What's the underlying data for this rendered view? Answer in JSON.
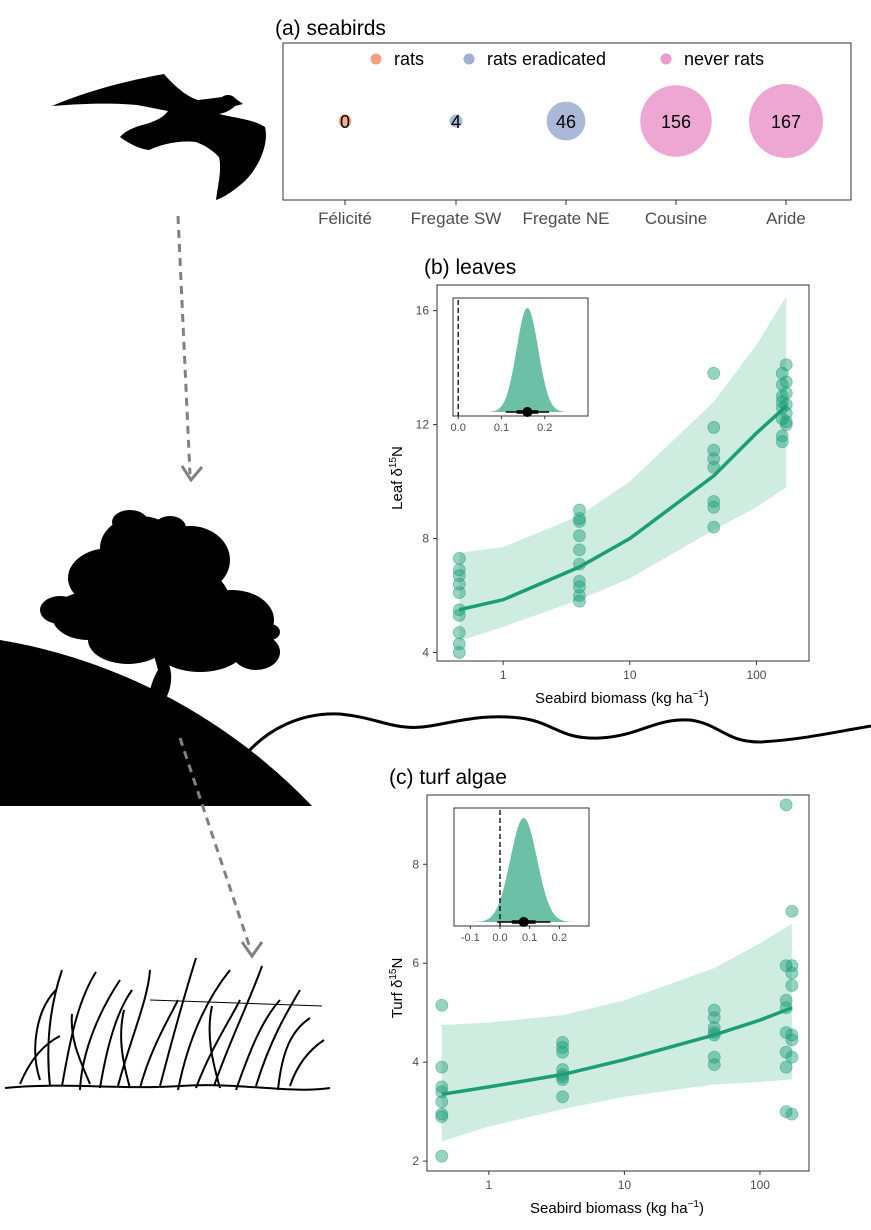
{
  "colors": {
    "rats": "#f0916a",
    "rats_eradicated": "#8fa0cb",
    "never_rats": "#e78ac3",
    "green": "#1b9e77",
    "ribbon": "#a8dcc8"
  },
  "icons": [
    "seabird-silhouette",
    "tree-silhouette",
    "island-hill",
    "sea-surface-line",
    "turf-algae-drawing",
    "dashed-arrow"
  ],
  "chart_data": [
    {
      "id": "a",
      "type": "bubble",
      "title": "(a) seabirds",
      "categories": [
        "Félicité",
        "Fregate SW",
        "Fregate NE",
        "Cousine",
        "Aride"
      ],
      "values": [
        0,
        4,
        46,
        156,
        167
      ],
      "status": [
        "rats",
        "rats eradicated",
        "rats eradicated",
        "never rats",
        "never rats"
      ],
      "legend": [
        "rats",
        "rats eradicated",
        "never rats"
      ],
      "legend_position": "top"
    },
    {
      "id": "b",
      "type": "scatter",
      "title": "(b) leaves",
      "xlabel_main": "Seabird biomass (kg ha",
      "xlabel_sup": "−1",
      "xlabel_end": ")",
      "ylabel_main": "Leaf δ",
      "ylabel_sup": "15",
      "ylabel_end": "N",
      "x_scale": "log",
      "xlim": [
        0.3,
        260
      ],
      "ylim": [
        3.7,
        16.9
      ],
      "xticks": [
        1,
        10,
        100
      ],
      "xtick_labels": [
        "1",
        "10",
        "100"
      ],
      "yticks": [
        4,
        8,
        12,
        16
      ],
      "ytick_labels": [
        "4",
        "8",
        "12",
        "16"
      ],
      "points": [
        {
          "x": 0.45,
          "y": 7.3
        },
        {
          "x": 0.45,
          "y": 6.9
        },
        {
          "x": 0.45,
          "y": 6.7
        },
        {
          "x": 0.45,
          "y": 6.4
        },
        {
          "x": 0.45,
          "y": 6.1
        },
        {
          "x": 0.45,
          "y": 5.5
        },
        {
          "x": 0.45,
          "y": 5.3
        },
        {
          "x": 0.45,
          "y": 4.7
        },
        {
          "x": 0.45,
          "y": 4.3
        },
        {
          "x": 0.45,
          "y": 4.0
        },
        {
          "x": 4,
          "y": 9.0
        },
        {
          "x": 4,
          "y": 8.7
        },
        {
          "x": 4,
          "y": 8.6
        },
        {
          "x": 4,
          "y": 8.1
        },
        {
          "x": 4,
          "y": 7.6
        },
        {
          "x": 4,
          "y": 7.1
        },
        {
          "x": 4,
          "y": 6.5
        },
        {
          "x": 4,
          "y": 6.3
        },
        {
          "x": 4,
          "y": 6.0
        },
        {
          "x": 4,
          "y": 5.8
        },
        {
          "x": 46,
          "y": 13.8
        },
        {
          "x": 46,
          "y": 11.9
        },
        {
          "x": 46,
          "y": 11.1
        },
        {
          "x": 46,
          "y": 10.8
        },
        {
          "x": 46,
          "y": 10.5
        },
        {
          "x": 46,
          "y": 9.3
        },
        {
          "x": 46,
          "y": 9.1
        },
        {
          "x": 46,
          "y": 8.4
        },
        {
          "x": 160,
          "y": 13.8
        },
        {
          "x": 160,
          "y": 13.4
        },
        {
          "x": 160,
          "y": 13.0
        },
        {
          "x": 160,
          "y": 12.8
        },
        {
          "x": 160,
          "y": 12.6
        },
        {
          "x": 160,
          "y": 12.2
        },
        {
          "x": 160,
          "y": 11.6
        },
        {
          "x": 160,
          "y": 11.4
        },
        {
          "x": 172,
          "y": 14.1
        },
        {
          "x": 172,
          "y": 13.5
        },
        {
          "x": 172,
          "y": 13.1
        },
        {
          "x": 172,
          "y": 12.7
        },
        {
          "x": 172,
          "y": 12.4
        },
        {
          "x": 172,
          "y": 12.1
        },
        {
          "x": 172,
          "y": 12.0
        }
      ],
      "fit": [
        {
          "x": 0.45,
          "y": 5.5,
          "lo": 4.4,
          "hi": 7.5
        },
        {
          "x": 1,
          "y": 5.85,
          "lo": 4.9,
          "hi": 7.7
        },
        {
          "x": 4,
          "y": 7.0,
          "lo": 5.85,
          "hi": 8.8
        },
        {
          "x": 10,
          "y": 8.0,
          "lo": 6.6,
          "hi": 10.0
        },
        {
          "x": 46,
          "y": 10.2,
          "lo": 8.3,
          "hi": 12.8
        },
        {
          "x": 100,
          "y": 11.7,
          "lo": 9.1,
          "hi": 14.8
        },
        {
          "x": 172,
          "y": 12.65,
          "lo": 9.8,
          "hi": 16.5
        }
      ],
      "inset": {
        "type": "density",
        "xlim": [
          -0.012,
          0.3
        ],
        "xticks": [
          0.0,
          0.1,
          0.2
        ],
        "xtick_labels": [
          "0.0",
          "0.1",
          "0.2"
        ],
        "zero_line": 0,
        "mean": 0.16,
        "sd": 0.025,
        "median": 0.16,
        "inner_interval": [
          0.135,
          0.185
        ],
        "outer_interval": [
          0.11,
          0.21
        ]
      }
    },
    {
      "id": "c",
      "type": "scatter",
      "title": "(c) turf algae",
      "xlabel_main": "Seabird biomass (kg ha",
      "xlabel_sup": "−1",
      "xlabel_end": ")",
      "ylabel_main": "Turf δ",
      "ylabel_sup": "15",
      "ylabel_end": "N",
      "x_scale": "log",
      "xlim": [
        0.35,
        230
      ],
      "ylim": [
        1.8,
        9.4
      ],
      "xticks": [
        1,
        10,
        100
      ],
      "xtick_labels": [
        "1",
        "10",
        "100"
      ],
      "yticks": [
        2,
        4,
        6,
        8
      ],
      "ytick_labels": [
        "2",
        "4",
        "6",
        "8"
      ],
      "points": [
        {
          "x": 0.45,
          "y": 5.15
        },
        {
          "x": 0.45,
          "y": 3.9
        },
        {
          "x": 0.45,
          "y": 3.5
        },
        {
          "x": 0.45,
          "y": 3.4
        },
        {
          "x": 0.45,
          "y": 3.2
        },
        {
          "x": 0.45,
          "y": 2.95
        },
        {
          "x": 0.45,
          "y": 2.9
        },
        {
          "x": 0.45,
          "y": 2.1
        },
        {
          "x": 3.5,
          "y": 4.4
        },
        {
          "x": 3.5,
          "y": 4.3
        },
        {
          "x": 3.5,
          "y": 4.2
        },
        {
          "x": 3.5,
          "y": 3.85
        },
        {
          "x": 3.5,
          "y": 3.75
        },
        {
          "x": 3.5,
          "y": 3.7
        },
        {
          "x": 3.5,
          "y": 3.65
        },
        {
          "x": 3.5,
          "y": 3.3
        },
        {
          "x": 46,
          "y": 5.05
        },
        {
          "x": 46,
          "y": 4.9
        },
        {
          "x": 46,
          "y": 4.7
        },
        {
          "x": 46,
          "y": 4.6
        },
        {
          "x": 46,
          "y": 4.55
        },
        {
          "x": 46,
          "y": 4.1
        },
        {
          "x": 46,
          "y": 3.95
        },
        {
          "x": 156,
          "y": 9.2
        },
        {
          "x": 156,
          "y": 5.95
        },
        {
          "x": 156,
          "y": 5.25
        },
        {
          "x": 156,
          "y": 5.1
        },
        {
          "x": 156,
          "y": 4.6
        },
        {
          "x": 156,
          "y": 4.2
        },
        {
          "x": 156,
          "y": 3.9
        },
        {
          "x": 156,
          "y": 3.0
        },
        {
          "x": 172,
          "y": 7.05
        },
        {
          "x": 172,
          "y": 5.95
        },
        {
          "x": 172,
          "y": 5.8
        },
        {
          "x": 172,
          "y": 5.55
        },
        {
          "x": 172,
          "y": 4.55
        },
        {
          "x": 172,
          "y": 4.45
        },
        {
          "x": 172,
          "y": 4.1
        },
        {
          "x": 172,
          "y": 2.95
        }
      ],
      "fit": [
        {
          "x": 0.45,
          "y": 3.35,
          "lo": 2.4,
          "hi": 4.75
        },
        {
          "x": 1,
          "y": 3.5,
          "lo": 2.7,
          "hi": 4.8
        },
        {
          "x": 3.5,
          "y": 3.75,
          "lo": 3.05,
          "hi": 4.95
        },
        {
          "x": 10,
          "y": 4.05,
          "lo": 3.3,
          "hi": 5.25
        },
        {
          "x": 46,
          "y": 4.55,
          "lo": 3.55,
          "hi": 5.9
        },
        {
          "x": 100,
          "y": 4.85,
          "lo": 3.6,
          "hi": 6.4
        },
        {
          "x": 172,
          "y": 5.1,
          "lo": 3.65,
          "hi": 6.8
        }
      ],
      "inset": {
        "type": "density",
        "xlim": [
          -0.155,
          0.3
        ],
        "xticks": [
          -0.1,
          0.0,
          0.1,
          0.2
        ],
        "xtick_labels": [
          "-0.1",
          "0.0",
          "0.1",
          "0.2"
        ],
        "zero_line": 0,
        "mean": 0.08,
        "sd": 0.045,
        "median": 0.08,
        "inner_interval": [
          0.04,
          0.12
        ],
        "outer_interval": [
          -0.01,
          0.17
        ]
      }
    }
  ]
}
